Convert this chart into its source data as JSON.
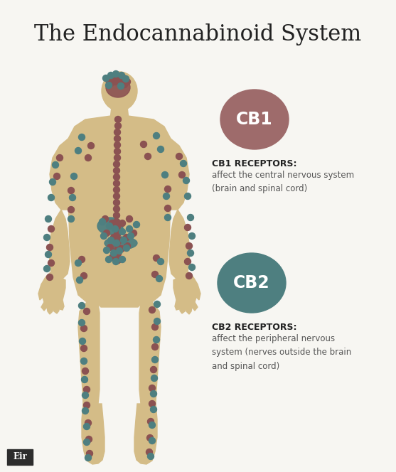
{
  "title": "The Endocannabinoid System",
  "title_fontsize": 22,
  "bg_color": "#f7f6f2",
  "body_color": "#d4bc87",
  "organ_color": "#4e7f80",
  "brain_color": "#8b5252",
  "cb1_color": "#9e6b6b",
  "cb2_color": "#4e7f80",
  "dot_color_1": "#8b5252",
  "dot_color_2": "#4e7f80",
  "cb1_label": "CB1",
  "cb2_label": "CB2",
  "cb1_title": "CB1 RECEPTORS:",
  "cb2_title": "CB2 RECEPTORS:",
  "cb1_text": "affect the central nervous system\n(brain and spinal cord)",
  "cb2_text": "affect the peripheral nervous\nsystem (nerves outside the brain\nand spinal cord)",
  "logo_text": "Eir",
  "logo_bg": "#2d2d2d",
  "text_color": "#222222",
  "text_desc_color": "#555555"
}
